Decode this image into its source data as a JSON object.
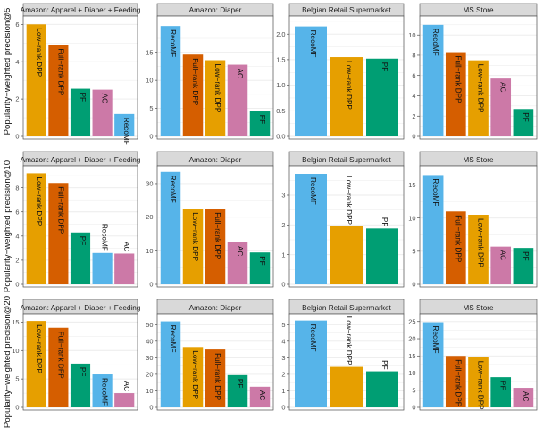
{
  "colors": {
    "RecoMF": "#56B4E9",
    "Low-rank DPP": "#E69F00",
    "Full-rank DPP": "#D55E00",
    "PF": "#009E73",
    "AC": "#CC79A7",
    "strip_fill": "#D9D9D9",
    "panel_border": "#4d4d4d",
    "grid": "#EBEBEB"
  },
  "chart_data": [
    {
      "type": "bar",
      "row": 0,
      "col": 0,
      "title": "Amazon: Apparel + Diaper + Feeding",
      "ylabel": "Popularity−weighted precision@5",
      "ylim": [
        0,
        6.3
      ],
      "yticks": [
        0,
        2,
        4,
        6
      ],
      "yticklabels": [
        "0",
        "2",
        "4",
        "6"
      ],
      "categories": [
        "Low−rank DPP",
        "Full−rank DPP",
        "PF",
        "AC",
        "RecoMF"
      ],
      "values": [
        6.0,
        4.9,
        2.55,
        2.5,
        1.2
      ],
      "color_keys": [
        "Low-rank DPP",
        "Full-rank DPP",
        "PF",
        "AC",
        "RecoMF"
      ],
      "label_inside": [
        true,
        true,
        true,
        true,
        true
      ]
    },
    {
      "type": "bar",
      "row": 0,
      "col": 1,
      "title": "Amazon: Diaper",
      "ylabel": "",
      "ylim": [
        0,
        21
      ],
      "yticks": [
        0,
        5,
        10,
        15
      ],
      "yticklabels": [
        "0",
        "5",
        "10",
        "15"
      ],
      "categories": [
        "RecoMF",
        "Full−rank DPP",
        "Low−rank DPP",
        "AC",
        "PF"
      ],
      "values": [
        19.7,
        14.6,
        13.6,
        12.8,
        4.5
      ],
      "color_keys": [
        "RecoMF",
        "Full-rank DPP",
        "Low-rank DPP",
        "AC",
        "PF"
      ],
      "label_inside": [
        true,
        true,
        true,
        true,
        true
      ]
    },
    {
      "type": "bar",
      "row": 0,
      "col": 2,
      "title": "Belgian Retail Supermarket",
      "ylabel": "",
      "ylim": [
        0,
        2.3
      ],
      "yticks": [
        0,
        0.5,
        1.0,
        1.5,
        2.0
      ],
      "yticklabels": [
        "0.0",
        "0.5",
        "1.0",
        "1.5",
        "2.0"
      ],
      "categories": [
        "RecoMF",
        "Low−rank DPP",
        "PF"
      ],
      "values": [
        2.15,
        1.55,
        1.52
      ],
      "color_keys": [
        "RecoMF",
        "Low-rank DPP",
        "PF"
      ],
      "label_inside": [
        true,
        true,
        true
      ]
    },
    {
      "type": "bar",
      "row": 0,
      "col": 3,
      "title": "MS Store",
      "ylabel": "",
      "ylim": [
        0,
        11.6
      ],
      "yticks": [
        0,
        2,
        4,
        6,
        8,
        10
      ],
      "yticklabels": [
        "0",
        "2",
        "4",
        "6",
        "8",
        "10"
      ],
      "categories": [
        "RecoMF",
        "Full−rank DPP",
        "Low−rank DPP",
        "AC",
        "PF"
      ],
      "values": [
        11.0,
        8.3,
        7.5,
        5.7,
        2.7
      ],
      "color_keys": [
        "RecoMF",
        "Full-rank DPP",
        "Low-rank DPP",
        "AC",
        "PF"
      ],
      "label_inside": [
        true,
        true,
        true,
        true,
        true
      ]
    },
    {
      "type": "bar",
      "row": 1,
      "col": 0,
      "title": "Amazon: Apparel + Diaper + Feeding",
      "ylabel": "Popularity−weighted precision@10",
      "ylim": [
        0,
        9.6
      ],
      "yticks": [
        0,
        2,
        4,
        6,
        8
      ],
      "yticklabels": [
        "0",
        "2",
        "4",
        "6",
        "8"
      ],
      "categories": [
        "Low−rank DPP",
        "Full−rank DPP",
        "PF",
        "RecoMF",
        "AC"
      ],
      "values": [
        9.2,
        8.4,
        4.3,
        2.6,
        2.55
      ],
      "color_keys": [
        "Low-rank DPP",
        "Full-rank DPP",
        "PF",
        "RecoMF",
        "AC"
      ],
      "label_inside": [
        true,
        true,
        true,
        false,
        false
      ]
    },
    {
      "type": "bar",
      "row": 1,
      "col": 1,
      "title": "Amazon: Diaper",
      "ylabel": "",
      "ylim": [
        0,
        34.5
      ],
      "yticks": [
        0,
        10,
        20,
        30
      ],
      "yticklabels": [
        "0",
        "10",
        "20",
        "30"
      ],
      "categories": [
        "RecoMF",
        "Low−rank DPP",
        "Full−rank DPP",
        "AC",
        "PF"
      ],
      "values": [
        33.5,
        22.5,
        22.5,
        12.5,
        9.5
      ],
      "color_keys": [
        "RecoMF",
        "Low-rank DPP",
        "Full-rank DPP",
        "AC",
        "PF"
      ],
      "label_inside": [
        true,
        true,
        true,
        true,
        true
      ]
    },
    {
      "type": "bar",
      "row": 1,
      "col": 2,
      "title": "Belgian Retail Supermarket",
      "ylabel": "",
      "ylim": [
        0,
        3.9
      ],
      "yticks": [
        0,
        1,
        2,
        3
      ],
      "yticklabels": [
        "0",
        "1",
        "2",
        "3"
      ],
      "categories": [
        "RecoMF",
        "Low−rank DPP",
        "PF"
      ],
      "values": [
        3.72,
        1.95,
        1.88
      ],
      "color_keys": [
        "RecoMF",
        "Low-rank DPP",
        "PF"
      ],
      "label_inside": [
        true,
        false,
        false
      ]
    },
    {
      "type": "bar",
      "row": 1,
      "col": 3,
      "title": "MS Store",
      "ylabel": "",
      "ylim": [
        0,
        17.5
      ],
      "yticks": [
        0,
        5,
        10,
        15
      ],
      "yticklabels": [
        "0",
        "5",
        "10",
        "15"
      ],
      "categories": [
        "RecoMF",
        "Full−rank DPP",
        "Low−rank DPP",
        "AC",
        "PF"
      ],
      "values": [
        16.5,
        11.0,
        10.5,
        5.7,
        5.5
      ],
      "color_keys": [
        "RecoMF",
        "Full-rank DPP",
        "Low-rank DPP",
        "AC",
        "PF"
      ],
      "label_inside": [
        true,
        true,
        true,
        true,
        true
      ]
    },
    {
      "type": "bar",
      "row": 2,
      "col": 0,
      "title": "Amazon: Apparel + Diaper + Feeding",
      "ylabel": "Popularity−weighted precision@20",
      "ylim": [
        0,
        16
      ],
      "yticks": [
        0,
        5,
        10,
        15
      ],
      "yticklabels": [
        "0",
        "5",
        "10",
        "15"
      ],
      "categories": [
        "Low−rank DPP",
        "Full−rank DPP",
        "PF",
        "RecoMF",
        "AC"
      ],
      "values": [
        15.2,
        14.0,
        7.7,
        5.8,
        2.5
      ],
      "color_keys": [
        "Low-rank DPP",
        "Full-rank DPP",
        "PF",
        "RecoMF",
        "AC"
      ],
      "label_inside": [
        true,
        true,
        true,
        true,
        false
      ]
    },
    {
      "type": "bar",
      "row": 2,
      "col": 1,
      "title": "Amazon: Diaper",
      "ylabel": "",
      "ylim": [
        0,
        55
      ],
      "yticks": [
        0,
        10,
        20,
        30,
        40,
        50
      ],
      "yticklabels": [
        "0",
        "10",
        "20",
        "30",
        "40",
        "50"
      ],
      "categories": [
        "RecoMF",
        "Low−rank DPP",
        "Full−rank DPP",
        "PF",
        "AC"
      ],
      "values": [
        52.0,
        36.5,
        35.0,
        19.5,
        12.5
      ],
      "color_keys": [
        "RecoMF",
        "Low-rank DPP",
        "Full-rank DPP",
        "PF",
        "AC"
      ],
      "label_inside": [
        true,
        true,
        true,
        true,
        true
      ]
    },
    {
      "type": "bar",
      "row": 2,
      "col": 2,
      "title": "Belgian Retail Supermarket",
      "ylabel": "",
      "ylim": [
        0,
        5.5
      ],
      "yticks": [
        0,
        1,
        2,
        3,
        4,
        5
      ],
      "yticklabels": [
        "0",
        "1",
        "2",
        "3",
        "4",
        "5"
      ],
      "categories": [
        "RecoMF",
        "Low−rank DPP",
        "PF"
      ],
      "values": [
        5.25,
        2.45,
        2.18
      ],
      "color_keys": [
        "RecoMF",
        "Low-rank DPP",
        "PF"
      ],
      "label_inside": [
        true,
        false,
        false
      ]
    },
    {
      "type": "bar",
      "row": 2,
      "col": 3,
      "title": "MS Store",
      "ylabel": "",
      "ylim": [
        0,
        26.5
      ],
      "yticks": [
        0,
        5,
        10,
        15,
        20,
        25
      ],
      "yticklabels": [
        "0",
        "5",
        "10",
        "15",
        "20",
        "25"
      ],
      "categories": [
        "RecoMF",
        "Full−rank DPP",
        "Low−rank DPP",
        "PF",
        "AC"
      ],
      "values": [
        24.8,
        15.0,
        14.6,
        8.8,
        5.7
      ],
      "color_keys": [
        "RecoMF",
        "Full-rank DPP",
        "Low-rank DPP",
        "PF",
        "AC"
      ],
      "label_inside": [
        true,
        true,
        true,
        true,
        true
      ]
    }
  ]
}
